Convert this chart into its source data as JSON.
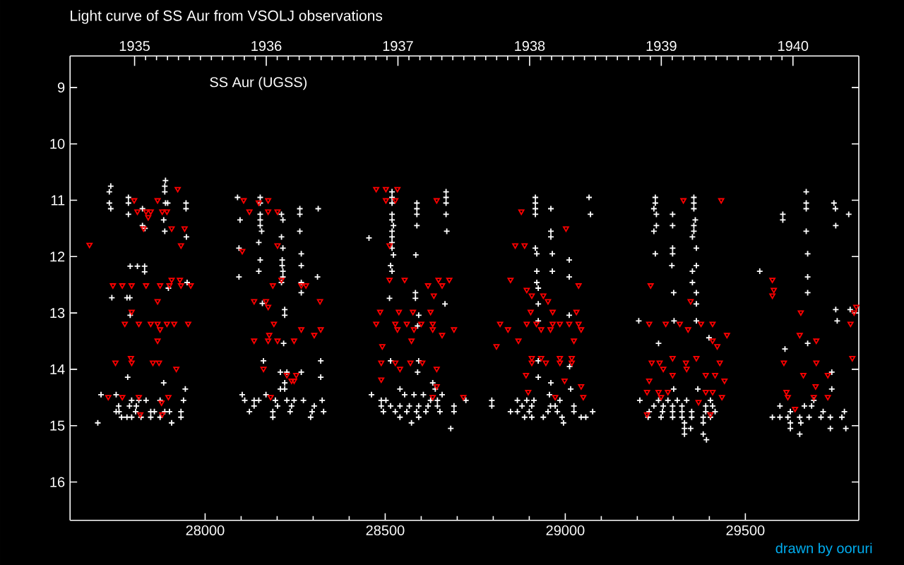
{
  "chart_data": {
    "type": "scatter",
    "title": "Light curve of SS Aur from VSOLJ observations",
    "annotations": [
      "SS Aur (UGSS)",
      "drawn by ooruri"
    ],
    "xlim": [
      27625,
      29815
    ],
    "xticks": [
      28000,
      28500,
      29000,
      29500
    ],
    "x2lim": [
      1934.51,
      1940.5
    ],
    "x2ticks": [
      1935,
      1936,
      1937,
      1938,
      1939,
      1940
    ],
    "ylim": [
      16.68,
      8.44
    ],
    "yticks": [
      9,
      10,
      11,
      12,
      13,
      14,
      15,
      16
    ],
    "series": [
      {
        "color": "#ffffff",
        "marker": "cross",
        "x": [
          27702,
          27738,
          27734,
          27734,
          27738,
          27787,
          27787,
          27787,
          27890,
          27888,
          27888,
          27890,
          27896,
          27885,
          27947,
          27947,
          27948,
          27826,
          27826,
          27833,
          27792,
          27812,
          27832,
          27832,
          27888,
          27950,
          27898,
          27741,
          27783,
          27791,
          27792,
          27785,
          27885,
          27945,
          27711,
          27753,
          27760,
          27796,
          27816,
          27836,
          27875,
          27940,
          27761,
          27790,
          27809,
          27849,
          27888,
          27933,
          27901,
          27768,
          27783,
          27796,
          27822,
          27849,
          27875,
          27933,
          27907,
          27753,
          27859,
          27807,
          28090,
          28097,
          28094,
          28094,
          28149,
          28149,
          28153,
          28153,
          28153,
          28153,
          28153,
          28153,
          28157,
          28212,
          28216,
          28212,
          28216,
          28214,
          28214,
          28216,
          28216,
          28212,
          28263,
          28263,
          28263,
          28267,
          28267,
          28267,
          28267,
          28314,
          28312,
          28221,
          28221,
          28218,
          28159,
          28162,
          28321,
          28321,
          28209,
          28227,
          28267,
          28221,
          28221,
          28209,
          28103,
          28110,
          28136,
          28169,
          28195,
          28227,
          28247,
          28273,
          28325,
          28136,
          28201,
          28240,
          28303,
          28123,
          28188,
          28236,
          28297,
          28329,
          28188,
          28293,
          28149,
          28455,
          28519,
          28519,
          28519,
          28519,
          28519,
          28523,
          28519,
          28519,
          28519,
          28519,
          28523,
          28515,
          28519,
          28588,
          28588,
          28588,
          28588,
          28585,
          28669,
          28669,
          28669,
          28669,
          28671,
          28584,
          28584,
          28666,
          28593,
          28590,
          28515,
          28593,
          28590,
          28512,
          28632,
          28639,
          28462,
          28489,
          28502,
          28541,
          28554,
          28580,
          28606,
          28626,
          28658,
          28645,
          28724,
          28489,
          28515,
          28541,
          28567,
          28593,
          28619,
          28645,
          28691,
          28495,
          28528,
          28560,
          28587,
          28613,
          28652,
          28691,
          28573,
          28682,
          28541,
          28593,
          28917,
          28917,
          28917,
          28917,
          28960,
          29066,
          29070,
          28960,
          28960,
          28917,
          28921,
          28964,
          29011,
          28921,
          28964,
          29011,
          28921,
          28925,
          28925,
          29011,
          28925,
          28796,
          28796,
          28925,
          29012,
          28925,
          28960,
          29015,
          28956,
          28867,
          28893,
          28913,
          28959,
          28985,
          29024,
          28880,
          28907,
          28972,
          28848,
          28867,
          28900,
          28952,
          28978,
          29024,
          29076,
          28887,
          28907,
          28939,
          28991,
          29044,
          29057,
          28995,
          29250,
          29250,
          29246,
          29253,
          29253,
          29246,
          29250,
          29298,
          29298,
          29298,
          29298,
          29296,
          29301,
          29357,
          29357,
          29357,
          29361,
          29357,
          29357,
          29353,
          29364,
          29364,
          29353,
          29353,
          29364,
          29364,
          29204,
          29302,
          29364,
          29399,
          29259,
          29301,
          29368,
          29207,
          29259,
          29285,
          29311,
          29337,
          29403,
          29246,
          29272,
          29298,
          29324,
          29390,
          29409,
          29233,
          29270,
          29298,
          29324,
          29351,
          29390,
          29416,
          29230,
          29266,
          29298,
          29324,
          29351,
          29383,
          29403,
          29331,
          29383,
          29331,
          29348,
          29331,
          29383,
          29392,
          29669,
          29669,
          29669,
          29746,
          29750,
          29604,
          29604,
          29787,
          29751,
          29669,
          29673,
          29540,
          29673,
          29673,
          29751,
          29791,
          29755,
          29673,
          29610,
          29740,
          29740,
          29596,
          29625,
          29664,
          29684,
          29690,
          29618,
          29651,
          29677,
          29710,
          29736,
          29768,
          29625,
          29654,
          29625,
          29716,
          29775,
          29779,
          29736,
          29575,
          29596,
          29651
        ],
        "values": [
          14.95,
          10.75,
          10.85,
          11.05,
          11.15,
          10.95,
          11.05,
          11.25,
          10.65,
          10.75,
          10.85,
          11.05,
          11.05,
          11.35,
          11.05,
          11.15,
          11.65,
          11.15,
          11.45,
          11.5,
          12.17,
          12.17,
          12.17,
          12.27,
          11.55,
          12.46,
          12.56,
          12.73,
          12.73,
          12.73,
          13.04,
          14.14,
          14.24,
          14.35,
          14.45,
          14.45,
          14.65,
          14.55,
          14.55,
          14.55,
          14.55,
          14.55,
          14.75,
          14.65,
          14.65,
          14.75,
          14.75,
          14.75,
          14.75,
          14.85,
          14.85,
          14.85,
          14.85,
          14.85,
          14.85,
          14.85,
          14.95,
          14.75,
          14.75,
          14.75,
          10.95,
          11.35,
          11.85,
          12.36,
          11.75,
          12.26,
          12.06,
          10.95,
          11.05,
          11.25,
          11.35,
          11.45,
          11.55,
          11.25,
          11.35,
          11.65,
          11.85,
          12.06,
          12.16,
          12.26,
          12.36,
          12.46,
          11.15,
          11.25,
          11.55,
          11.95,
          12.16,
          12.46,
          12.64,
          11.15,
          12.36,
          12.94,
          13.04,
          13.54,
          12.83,
          13.85,
          13.85,
          14.14,
          14.05,
          14.05,
          14.05,
          14.24,
          14.35,
          14.35,
          14.45,
          14.55,
          14.55,
          14.45,
          14.55,
          14.55,
          14.55,
          14.55,
          14.55,
          14.65,
          14.65,
          14.65,
          14.65,
          14.75,
          14.75,
          14.75,
          14.75,
          14.75,
          14.85,
          14.85,
          14.55,
          11.67,
          10.85,
          10.95,
          11.05,
          11.25,
          11.35,
          11.45,
          11.55,
          11.65,
          11.75,
          11.85,
          11.97,
          12.16,
          12.26,
          11.05,
          11.15,
          11.25,
          11.45,
          11.97,
          10.85,
          10.95,
          11.05,
          11.25,
          11.55,
          12.64,
          12.74,
          12.84,
          13.04,
          13.23,
          13.85,
          13.85,
          14.05,
          12.74,
          14.24,
          14.35,
          14.45,
          14.55,
          14.55,
          14.35,
          14.45,
          14.45,
          14.45,
          14.55,
          14.45,
          14.55,
          14.55,
          14.65,
          14.65,
          14.65,
          14.65,
          14.65,
          14.65,
          14.65,
          14.65,
          14.75,
          14.75,
          14.75,
          14.75,
          14.75,
          14.75,
          14.75,
          14.95,
          15.05,
          14.85,
          14.85,
          10.95,
          11.05,
          11.15,
          11.25,
          11.15,
          10.95,
          11.25,
          11.55,
          11.65,
          11.85,
          11.95,
          11.95,
          12.06,
          12.26,
          12.26,
          12.36,
          12.46,
          12.56,
          12.84,
          13.04,
          13.14,
          14.55,
          14.65,
          13.85,
          13.95,
          14.14,
          14.24,
          14.35,
          14.45,
          14.55,
          14.55,
          14.55,
          14.65,
          14.55,
          14.65,
          14.65,
          14.65,
          14.65,
          14.75,
          14.75,
          14.75,
          14.75,
          14.75,
          14.75,
          14.75,
          14.85,
          14.85,
          14.85,
          14.85,
          14.85,
          14.85,
          14.95,
          10.95,
          11.05,
          11.15,
          11.25,
          11.45,
          11.55,
          11.95,
          11.25,
          11.45,
          11.85,
          11.95,
          12.16,
          12.64,
          10.95,
          11.05,
          11.15,
          11.35,
          11.45,
          11.55,
          11.65,
          11.85,
          12.16,
          12.26,
          12.46,
          12.64,
          12.84,
          13.14,
          13.14,
          13.14,
          13.44,
          13.54,
          14.35,
          14.35,
          14.55,
          14.55,
          14.55,
          14.55,
          14.55,
          14.55,
          14.65,
          14.65,
          14.65,
          14.65,
          14.65,
          14.65,
          14.75,
          14.75,
          14.75,
          14.75,
          14.75,
          14.75,
          14.75,
          14.85,
          14.85,
          14.85,
          14.85,
          14.85,
          14.85,
          14.85,
          14.95,
          14.95,
          15.05,
          15.05,
          15.15,
          15.15,
          15.25,
          10.85,
          11.05,
          11.15,
          11.05,
          11.15,
          11.25,
          11.35,
          11.25,
          11.45,
          11.55,
          11.95,
          12.26,
          12.36,
          12.64,
          12.94,
          12.94,
          13.14,
          13.54,
          13.64,
          14.05,
          14.35,
          14.65,
          14.75,
          14.65,
          14.65,
          14.55,
          14.85,
          14.85,
          14.85,
          14.85,
          14.85,
          14.85,
          14.95,
          14.95,
          15.05,
          14.75,
          14.75,
          15.05,
          15.05,
          14.85,
          14.85,
          15.15
        ]
      },
      {
        "color": "#ff0000",
        "marker": "triangle",
        "x": [
          27679,
          27803,
          27868,
          27812,
          27836,
          27849,
          27881,
          27894,
          27842,
          27829,
          27907,
          27943,
          27933,
          27924,
          27744,
          27770,
          27796,
          27836,
          27875,
          27901,
          27933,
          27960,
          27907,
          27930,
          27777,
          27816,
          27849,
          27868,
          27894,
          27914,
          27953,
          27796,
          27868,
          27875,
          27868,
          27751,
          27794,
          27796,
          27855,
          27872,
          27920,
          27731,
          27770,
          27816,
          27898,
          27879,
          27820,
          27881,
          28107,
          28149,
          28175,
          28123,
          28175,
          28201,
          28201,
          28103,
          28188,
          28267,
          28280,
          28212,
          28136,
          28169,
          28175,
          28319,
          28191,
          28267,
          28321,
          28303,
          28178,
          28136,
          28175,
          28201,
          28247,
          28162,
          28227,
          28253,
          28240,
          28247,
          28182,
          28475,
          28502,
          28534,
          28502,
          28528,
          28643,
          28512,
          28512,
          28554,
          28648,
          28678,
          28619,
          28658,
          28635,
          28486,
          28538,
          28577,
          28626,
          28475,
          28528,
          28560,
          28600,
          28632,
          28534,
          28580,
          28632,
          28691,
          28658,
          28573,
          28492,
          28489,
          28528,
          28570,
          28603,
          28643,
          28541,
          28489,
          28643,
          28632,
          28717,
          28878,
          28861,
          28887,
          29002,
          28848,
          28893,
          28907,
          28939,
          28952,
          29037,
          28904,
          28965,
          29031,
          28819,
          28893,
          28920,
          28965,
          28985,
          29011,
          29037,
          28841,
          28933,
          28959,
          29044,
          28870,
          29024,
          28809,
          28907,
          28933,
          28985,
          29018,
          28907,
          28946,
          28985,
          29018,
          28891,
          28998,
          29044,
          28897,
          29050,
          28972,
          29328,
          29433,
          29237,
          29348,
          29233,
          29279,
          29318,
          29377,
          29409,
          29341,
          29449,
          29409,
          29422,
          29298,
          29240,
          29262,
          29335,
          29364,
          29429,
          29272,
          29337,
          29233,
          29298,
          29390,
          29416,
          29442,
          29227,
          29259,
          29285,
          29390,
          29409,
          29435,
          29266,
          29370,
          29227,
          29403,
          29575,
          29579,
          29575,
          29654,
          29808,
          29802,
          29792,
          29651,
          29697,
          29607,
          29697,
          29797,
          29661,
          29729,
          29695,
          29614,
          29618,
          29690,
          29729,
          29638
        ],
        "values": [
          11.79,
          11.0,
          11.0,
          11.2,
          11.2,
          11.2,
          11.2,
          11.2,
          11.3,
          11.5,
          11.5,
          11.5,
          11.8,
          10.8,
          12.51,
          12.51,
          12.51,
          12.51,
          12.51,
          12.51,
          12.51,
          12.51,
          12.41,
          12.41,
          13.19,
          13.19,
          13.19,
          13.19,
          13.19,
          13.19,
          13.19,
          12.98,
          12.79,
          13.29,
          13.49,
          13.88,
          13.8,
          13.88,
          13.88,
          13.88,
          13.99,
          14.49,
          14.49,
          14.49,
          14.49,
          14.59,
          14.8,
          14.8,
          11.0,
          11.04,
          11.0,
          11.2,
          11.2,
          11.2,
          11.8,
          11.9,
          12.51,
          12.51,
          12.51,
          12.41,
          12.79,
          12.79,
          12.89,
          12.79,
          13.19,
          13.29,
          13.29,
          13.39,
          13.39,
          13.49,
          13.49,
          13.49,
          13.49,
          13.99,
          14.1,
          14.1,
          14.2,
          14.2,
          14.49,
          10.8,
          10.8,
          10.8,
          11.0,
          11.0,
          11.0,
          11.8,
          12.41,
          12.41,
          12.41,
          12.41,
          12.51,
          12.51,
          12.69,
          12.98,
          12.98,
          12.98,
          12.98,
          13.19,
          13.19,
          13.19,
          13.19,
          13.19,
          13.29,
          13.29,
          13.29,
          13.29,
          13.39,
          13.49,
          13.59,
          13.88,
          13.88,
          13.88,
          13.88,
          13.99,
          13.99,
          14.18,
          14.3,
          14.49,
          14.49,
          11.2,
          11.8,
          11.8,
          11.5,
          12.41,
          12.59,
          12.69,
          12.69,
          12.79,
          12.51,
          12.98,
          12.98,
          12.98,
          13.19,
          13.19,
          13.19,
          13.19,
          13.19,
          13.19,
          13.19,
          13.29,
          13.29,
          13.29,
          13.29,
          13.49,
          13.49,
          13.59,
          13.8,
          13.8,
          13.8,
          13.8,
          13.88,
          13.88,
          13.88,
          13.88,
          14.1,
          14.2,
          14.3,
          14.4,
          14.49,
          14.49,
          11.0,
          11.0,
          12.51,
          12.79,
          13.19,
          13.19,
          13.19,
          13.19,
          13.19,
          13.29,
          13.39,
          13.49,
          13.59,
          13.8,
          13.88,
          13.88,
          13.88,
          13.8,
          13.88,
          13.99,
          13.99,
          14.2,
          14.1,
          14.1,
          14.1,
          14.2,
          14.4,
          14.4,
          14.4,
          14.4,
          14.4,
          14.49,
          14.49,
          14.58,
          14.8,
          14.8,
          12.41,
          12.59,
          12.69,
          12.99,
          12.89,
          12.99,
          13.19,
          13.39,
          13.49,
          13.88,
          13.88,
          13.8,
          14.1,
          14.1,
          14.3,
          14.4,
          14.49,
          14.49,
          14.49,
          14.7
        ]
      }
    ]
  }
}
